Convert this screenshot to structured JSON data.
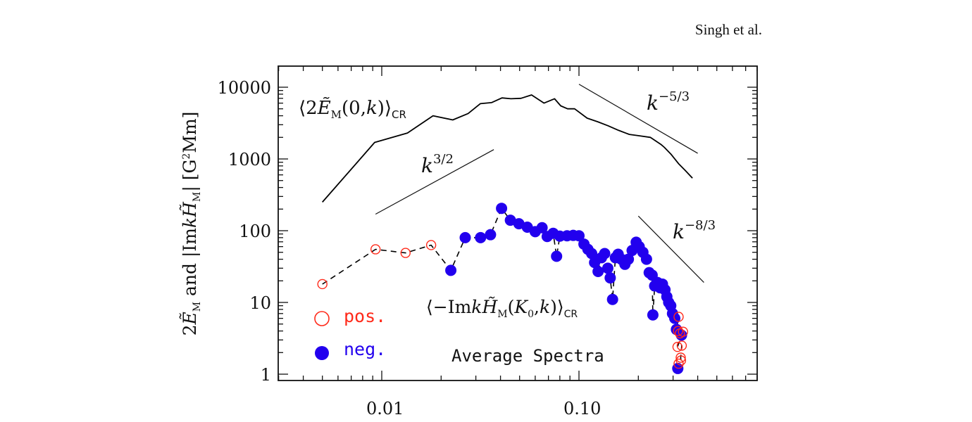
{
  "header": {
    "author": "Singh et al."
  },
  "chart_data": {
    "type": "scatter",
    "title": "Average Spectra",
    "xlabel": "",
    "ylabel": "2Ẽ_M and |Im kH̃_M| [G²Mm]",
    "xscale": "log",
    "yscale": "log",
    "xlim": [
      0.003,
      0.8
    ],
    "ylim": [
      0.9,
      20000
    ],
    "x_ticks": [
      {
        "value": 0.01,
        "label": "0.01"
      },
      {
        "value": 0.1,
        "label": "0.10"
      }
    ],
    "y_ticks": [
      {
        "value": 1,
        "label": "1"
      },
      {
        "value": 10,
        "label": "10"
      },
      {
        "value": 100,
        "label": "100"
      },
      {
        "value": 1000,
        "label": "1000"
      },
      {
        "value": 10000,
        "label": "10000"
      }
    ],
    "annotations": {
      "energy_label": "⟨2Ẽ_M(0,k)⟩_CR",
      "helicity_label": "⟨−Im kH̃_M(K_0,k)⟩_CR",
      "slope_32": "k^3/2",
      "slope_53": "k^−5/3",
      "slope_83": "k^−8/3",
      "title_text": "Average Spectra"
    },
    "legend": {
      "placement": "bottom-left",
      "items": [
        {
          "label": "pos.",
          "marker": "open-circle",
          "color": "#ff2a1a"
        },
        {
          "label": "neg.",
          "marker": "filled-circle",
          "color": "#2200ee"
        }
      ]
    },
    "series": [
      {
        "name": "2E_M(0,k) average spectrum",
        "style": "solid-line",
        "color": "#000000",
        "points": [
          [
            0.005,
            250
          ],
          [
            0.0092,
            1700
          ],
          [
            0.0135,
            2300
          ],
          [
            0.0182,
            4000
          ],
          [
            0.0229,
            3500
          ],
          [
            0.0274,
            4300
          ],
          [
            0.0316,
            5900
          ],
          [
            0.036,
            6100
          ],
          [
            0.0407,
            7100
          ],
          [
            0.0452,
            6900
          ],
          [
            0.0508,
            7000
          ],
          [
            0.0575,
            7800
          ],
          [
            0.0665,
            6000
          ],
          [
            0.0752,
            6900
          ],
          [
            0.0808,
            5500
          ],
          [
            0.0875,
            5000
          ],
          [
            0.095,
            5000
          ],
          [
            0.11,
            3700
          ],
          [
            0.1245,
            3300
          ],
          [
            0.1405,
            2900
          ],
          [
            0.159,
            2500
          ],
          [
            0.18,
            2200
          ],
          [
            0.203,
            2100
          ],
          [
            0.23,
            2000
          ],
          [
            0.26,
            1600
          ],
          [
            0.271,
            1450
          ],
          [
            0.294,
            1150
          ],
          [
            0.32,
            860
          ],
          [
            0.346,
            690
          ],
          [
            0.376,
            540
          ]
        ]
      },
      {
        "name": "-Im kH_M(K0,k) average spectrum",
        "style": "dashed-line",
        "color": "#000000",
        "points": [
          [
            0.005,
            18,
            "pos"
          ],
          [
            0.0093,
            55,
            "pos"
          ],
          [
            0.0132,
            49,
            "pos"
          ],
          [
            0.0178,
            63,
            "pos"
          ],
          [
            0.0224,
            28,
            "neg"
          ],
          [
            0.0265,
            80,
            "neg"
          ],
          [
            0.0317,
            80,
            "neg"
          ],
          [
            0.0356,
            88,
            "neg"
          ],
          [
            0.0405,
            205,
            "neg"
          ],
          [
            0.0449,
            140,
            "neg"
          ],
          [
            0.0496,
            125,
            "neg"
          ],
          [
            0.0547,
            112,
            "neg"
          ],
          [
            0.06,
            97,
            "neg"
          ],
          [
            0.065,
            110,
            "neg"
          ],
          [
            0.069,
            83,
            "neg"
          ],
          [
            0.074,
            92,
            "neg"
          ],
          [
            0.077,
            44,
            "neg"
          ],
          [
            0.08,
            84,
            "neg"
          ],
          [
            0.087,
            85,
            "neg"
          ],
          [
            0.0935,
            86,
            "neg"
          ],
          [
            0.1,
            85,
            "neg"
          ],
          [
            0.106,
            65,
            "neg"
          ],
          [
            0.111,
            55,
            "neg"
          ],
          [
            0.116,
            48,
            "neg"
          ],
          [
            0.12,
            36,
            "neg"
          ],
          [
            0.125,
            27,
            "neg"
          ],
          [
            0.13,
            42,
            "neg"
          ],
          [
            0.135,
            48,
            "neg"
          ],
          [
            0.14,
            30,
            "neg"
          ],
          [
            0.144,
            22,
            "neg"
          ],
          [
            0.148,
            11,
            "neg"
          ],
          [
            0.153,
            42,
            "neg"
          ],
          [
            0.158,
            47,
            "neg"
          ],
          [
            0.164,
            40,
            "neg"
          ],
          [
            0.171,
            34,
            "neg"
          ],
          [
            0.178,
            40,
            "neg"
          ],
          [
            0.186,
            53,
            "neg"
          ],
          [
            0.195,
            69,
            "neg"
          ],
          [
            0.202,
            60,
            "neg"
          ],
          [
            0.211,
            50,
            "neg"
          ],
          [
            0.22,
            40,
            "neg"
          ],
          [
            0.227,
            26,
            "neg"
          ],
          [
            0.235,
            24,
            "neg"
          ],
          [
            0.237,
            6.7,
            "neg"
          ],
          [
            0.242,
            17,
            "neg"
          ],
          [
            0.25,
            19,
            "neg"
          ],
          [
            0.258,
            16,
            "neg"
          ],
          [
            0.265,
            18,
            "neg"
          ],
          [
            0.273,
            15,
            "neg"
          ],
          [
            0.279,
            12,
            "neg"
          ],
          [
            0.285,
            10,
            "neg"
          ],
          [
            0.292,
            9,
            "neg"
          ],
          [
            0.298,
            7,
            "neg"
          ],
          [
            0.306,
            6,
            "neg"
          ],
          [
            0.32,
            6.3,
            "pos"
          ],
          [
            0.312,
            4.2,
            "neg"
          ],
          [
            0.318,
            4.0,
            "pos"
          ],
          [
            0.325,
            3.7,
            "pos"
          ],
          [
            0.331,
            3.5,
            "neg"
          ],
          [
            0.337,
            3.9,
            "pos"
          ],
          [
            0.316,
            2.4,
            "pos"
          ],
          [
            0.332,
            2.5,
            "pos"
          ],
          [
            0.328,
            1.7,
            "pos"
          ],
          [
            0.329,
            1.55,
            "pos"
          ],
          [
            0.317,
            1.2,
            "neg"
          ],
          [
            0.32,
            1.4,
            "pos"
          ]
        ]
      }
    ],
    "reference_lines": [
      {
        "label": "k^3/2",
        "from": [
          0.0093,
          170
        ],
        "to": [
          0.037,
          1350
        ]
      },
      {
        "label": "k^−5/3",
        "from": [
          0.1,
          11000
        ],
        "to": [
          0.4,
          1200
        ]
      },
      {
        "label": "k^−8/3",
        "from": [
          0.2,
          160
        ],
        "to": [
          0.43,
          19
        ]
      }
    ]
  }
}
